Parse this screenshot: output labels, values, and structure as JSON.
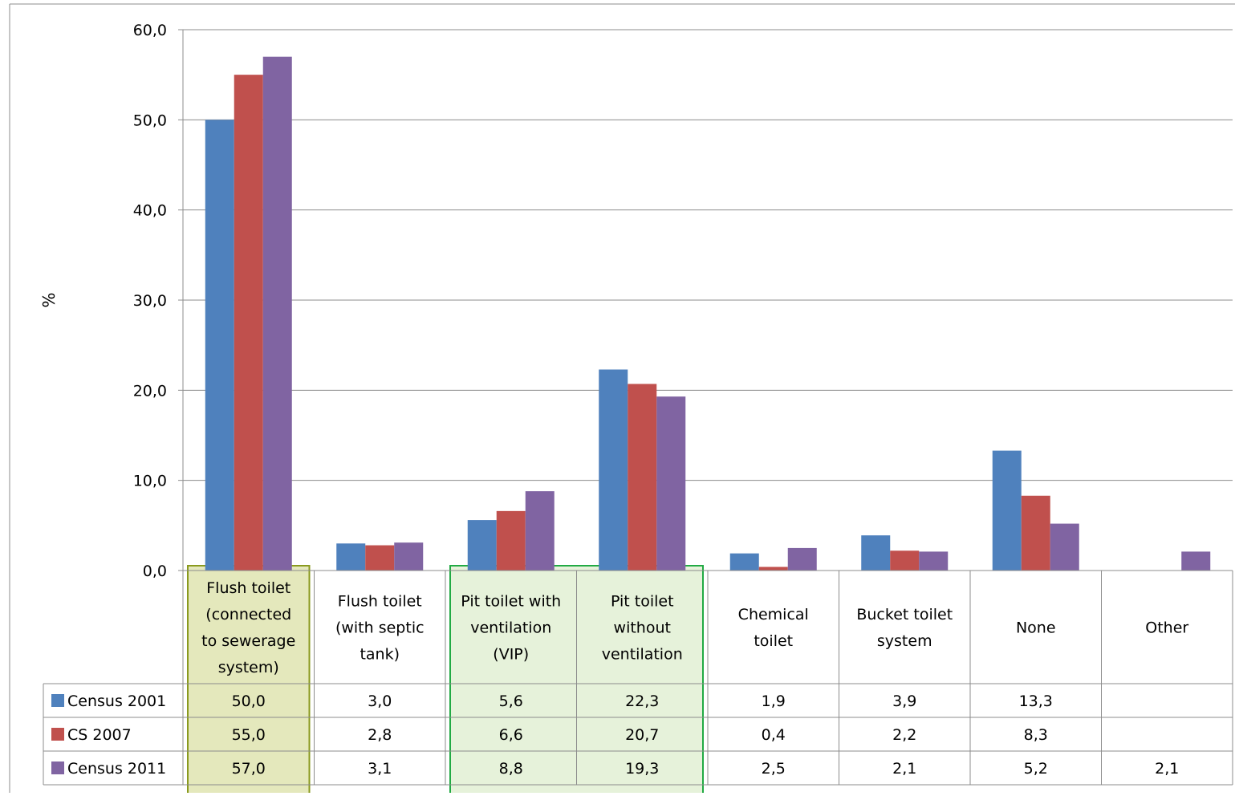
{
  "chart_data": {
    "type": "bar",
    "title": "",
    "xlabel": "",
    "ylabel": "%",
    "ylim": [
      0,
      60
    ],
    "yticks": [
      0,
      10,
      20,
      30,
      40,
      50,
      60
    ],
    "ytick_labels": [
      "0,0",
      "10,0",
      "20,0",
      "30,0",
      "40,0",
      "50,0",
      "60,0"
    ],
    "grid": true,
    "legend": "data-table-left",
    "categories": [
      [
        "Flush toilet",
        "(connected",
        "to sewerage",
        "system)"
      ],
      [
        "Flush toilet",
        "(with septic",
        "tank)"
      ],
      [
        "Pit toilet with",
        "ventilation",
        "(VIP)"
      ],
      [
        "Pit toilet",
        "without",
        "ventilation"
      ],
      [
        "Chemical",
        "toilet"
      ],
      [
        "Bucket toilet",
        "system"
      ],
      [
        "None"
      ],
      [
        "Other"
      ]
    ],
    "series": [
      {
        "name": "Census 2001",
        "color": "#4F81BD",
        "values": [
          50.0,
          3.0,
          5.6,
          22.3,
          1.9,
          3.9,
          13.3,
          null
        ],
        "labels": [
          "50,0",
          "3,0",
          "5,6",
          "22,3",
          "1,9",
          "3,9",
          "13,3",
          ""
        ]
      },
      {
        "name": "CS 2007",
        "color": "#C0504D",
        "values": [
          55.0,
          2.8,
          6.6,
          20.7,
          0.4,
          2.2,
          8.3,
          null
        ],
        "labels": [
          "55,0",
          "2,8",
          "6,6",
          "20,7",
          "0,4",
          "2,2",
          "8,3",
          ""
        ]
      },
      {
        "name": "Census 2011",
        "color": "#8064A2",
        "values": [
          57.0,
          3.1,
          8.8,
          19.3,
          2.5,
          2.1,
          5.2,
          2.1
        ],
        "labels": [
          "57,0",
          "3,1",
          "8,8",
          "19,3",
          "2,5",
          "2,1",
          "5,2",
          "2,1"
        ]
      }
    ],
    "highlights": [
      {
        "categories": [
          0
        ],
        "fill": "#E4E8BC",
        "stroke": "#8A9A1E"
      },
      {
        "categories": [
          2,
          3
        ],
        "fill": "#E6F2DA",
        "stroke": "#22AA44"
      }
    ]
  }
}
